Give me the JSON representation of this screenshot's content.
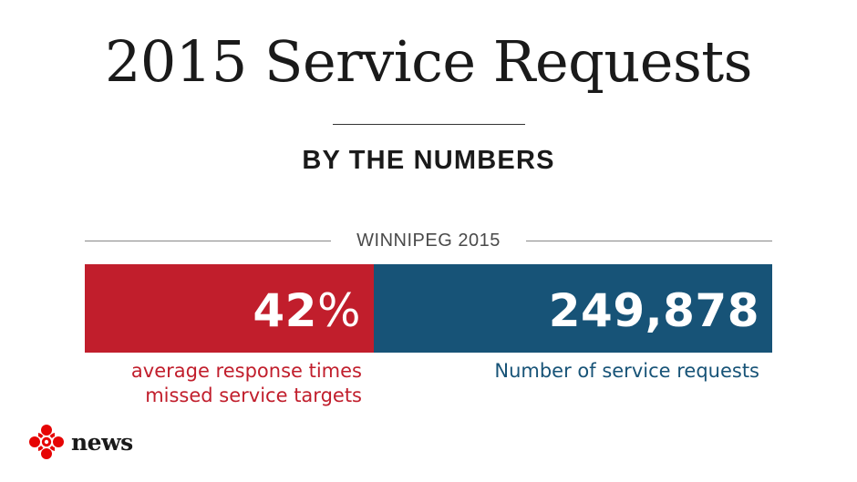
{
  "header": {
    "title": "2015 Service Requests",
    "subtitle": "BY THE NUMBERS"
  },
  "section": {
    "label": "WINNIPEG 2015"
  },
  "stats": [
    {
      "value": "42",
      "unit": "%",
      "caption_line1": "average response times",
      "caption_line2": "missed service targets",
      "color": "#c11e2c"
    },
    {
      "value": "249,878",
      "caption": "Number of service requests",
      "color": "#175377"
    }
  ],
  "logo": {
    "icon": "cbc-gem-icon",
    "text": "news",
    "color": "#e60505"
  }
}
